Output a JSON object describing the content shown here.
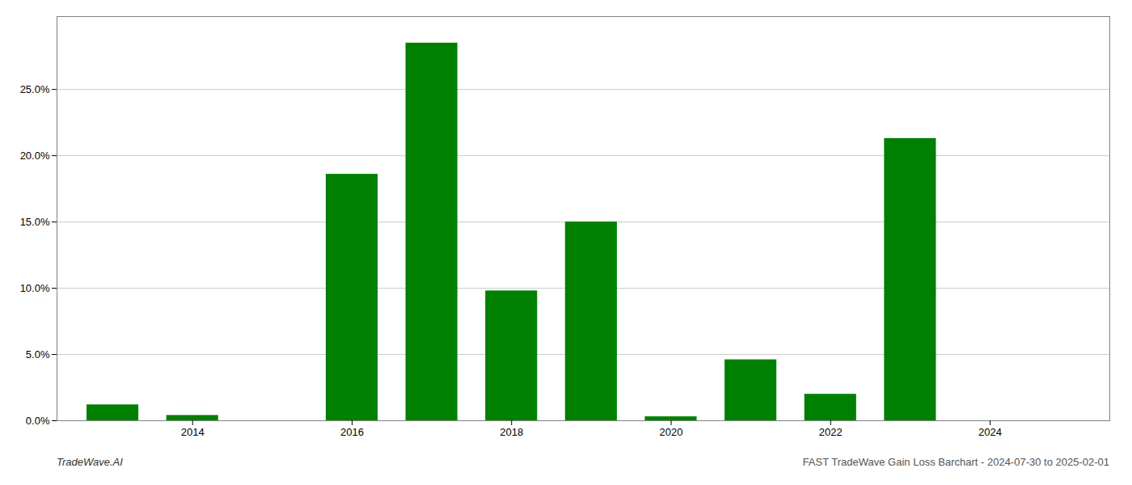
{
  "chart_data": {
    "type": "bar",
    "x": [
      2013,
      2014,
      2015,
      2016,
      2017,
      2018,
      2019,
      2020,
      2021,
      2022,
      2023,
      2024
    ],
    "values": [
      0.012,
      0.004,
      0.0,
      0.186,
      0.285,
      0.098,
      0.15,
      0.003,
      0.046,
      0.02,
      0.213,
      0.0
    ],
    "color": "#008000",
    "xlim": [
      2012.3,
      2025.5
    ],
    "xticks": [
      2014,
      2016,
      2018,
      2020,
      2022,
      2024
    ],
    "ylim": [
      0,
      0.305
    ],
    "yticks": [
      {
        "value": 0.0,
        "label": "0.0%"
      },
      {
        "value": 0.05,
        "label": "5.0%"
      },
      {
        "value": 0.1,
        "label": "10.0%"
      },
      {
        "value": 0.15,
        "label": "15.0%"
      },
      {
        "value": 0.2,
        "label": "20.0%"
      },
      {
        "value": 0.25,
        "label": "25.0%"
      }
    ],
    "grid": true,
    "annotations": [
      "TradeWave.AI",
      "FAST TradeWave Gain Loss Barchart - 2024-07-30 to 2025-02-01"
    ]
  }
}
